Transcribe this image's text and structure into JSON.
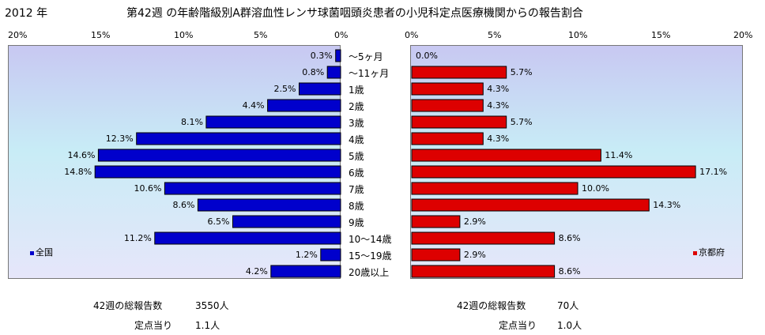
{
  "header": {
    "year": "2012 年",
    "title": "第42週 の年齢階級別A群溶血性レンサ球菌咽頭炎患者の小児科定点医療機関からの報告割合"
  },
  "chart_data": [
    {
      "type": "bar",
      "orientation": "horizontal",
      "direction": "right-to-left",
      "series": [
        {
          "name": "全国",
          "color": "#0000cc",
          "values": [
            0.3,
            0.8,
            2.5,
            4.4,
            8.1,
            12.3,
            14.6,
            14.8,
            10.6,
            8.6,
            6.5,
            11.2,
            1.2,
            4.2
          ],
          "labels": [
            "0.3%",
            "0.8%",
            "2.5%",
            "4.4%",
            "8.1%",
            "12.3%",
            "14.6%",
            "14.8%",
            "10.6%",
            "8.6%",
            "6.5%",
            "11.2%",
            "1.2%",
            "4.2%"
          ]
        }
      ],
      "xlim": [
        0,
        20
      ],
      "ticks": [
        "20%",
        "15%",
        "10%",
        "5%",
        "0%"
      ],
      "legend_position": "bottom-left",
      "summary": {
        "total_label": "42週の総報告数",
        "total_value": "3550人",
        "per_site_label": "定点当り",
        "per_site_value": "1.1人"
      }
    },
    {
      "type": "bar",
      "orientation": "horizontal",
      "direction": "left-to-right",
      "series": [
        {
          "name": "京都府",
          "color": "#dd0000",
          "values": [
            0.0,
            5.7,
            4.3,
            4.3,
            5.7,
            4.3,
            11.4,
            17.1,
            10.0,
            14.3,
            2.9,
            8.6,
            2.9,
            8.6
          ],
          "labels": [
            "0.0%",
            "5.7%",
            "4.3%",
            "4.3%",
            "5.7%",
            "4.3%",
            "11.4%",
            "17.1%",
            "10.0%",
            "14.3%",
            "2.9%",
            "8.6%",
            "2.9%",
            "8.6%"
          ]
        }
      ],
      "xlim": [
        0,
        20
      ],
      "ticks": [
        "0%",
        "5%",
        "10%",
        "15%",
        "20%"
      ],
      "legend_position": "bottom-right",
      "summary": {
        "total_label": "42週の総報告数",
        "total_value": "70人",
        "per_site_label": "定点当り",
        "per_site_value": "1.0人"
      }
    }
  ],
  "categories": [
    "～5ヶ月",
    "～11ヶ月",
    "1歳",
    "2歳",
    "3歳",
    "4歳",
    "5歳",
    "6歳",
    "7歳",
    "8歳",
    "9歳",
    "10～14歳",
    "15～19歳",
    "20歳以上"
  ]
}
